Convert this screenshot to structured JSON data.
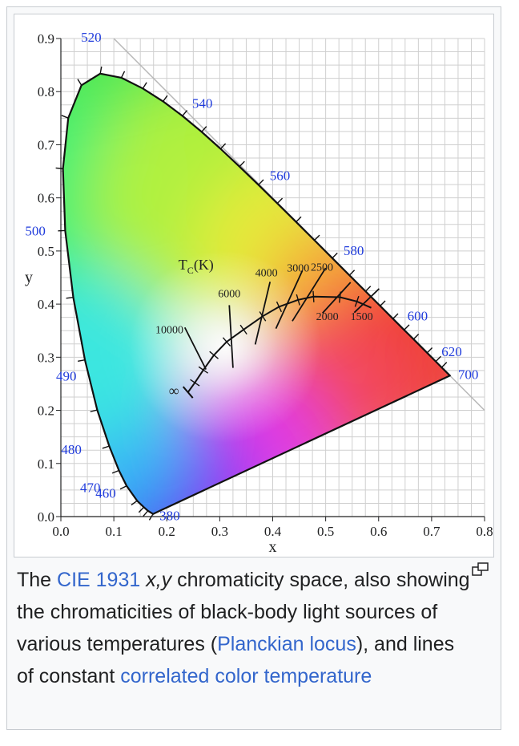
{
  "chart_data": {
    "type": "chromaticity-diagram",
    "title": "CIE 1931 x,y chromaticity space",
    "xlabel": "x",
    "ylabel": "y",
    "xlim": [
      0.0,
      0.8
    ],
    "ylim": [
      0.0,
      0.9
    ],
    "x_ticks": [
      "0.0",
      "0.1",
      "0.2",
      "0.3",
      "0.4",
      "0.5",
      "0.6",
      "0.7",
      "0.8"
    ],
    "y_ticks": [
      "0.0",
      "0.1",
      "0.2",
      "0.3",
      "0.4",
      "0.5",
      "0.6",
      "0.7",
      "0.8",
      "0.9"
    ],
    "spectral_locus": [
      {
        "nm": 380,
        "x": 0.1741,
        "y": 0.005
      },
      {
        "nm": 440,
        "x": 0.1644,
        "y": 0.0109
      },
      {
        "nm": 450,
        "x": 0.1566,
        "y": 0.0177
      },
      {
        "nm": 460,
        "x": 0.144,
        "y": 0.0297
      },
      {
        "nm": 470,
        "x": 0.1241,
        "y": 0.0578
      },
      {
        "nm": 475,
        "x": 0.1096,
        "y": 0.0868
      },
      {
        "nm": 480,
        "x": 0.0913,
        "y": 0.1327
      },
      {
        "nm": 485,
        "x": 0.0687,
        "y": 0.2007
      },
      {
        "nm": 490,
        "x": 0.0454,
        "y": 0.295
      },
      {
        "nm": 495,
        "x": 0.0235,
        "y": 0.4127
      },
      {
        "nm": 500,
        "x": 0.0082,
        "y": 0.5384
      },
      {
        "nm": 505,
        "x": 0.0039,
        "y": 0.6548
      },
      {
        "nm": 510,
        "x": 0.0139,
        "y": 0.7502
      },
      {
        "nm": 515,
        "x": 0.0389,
        "y": 0.812
      },
      {
        "nm": 520,
        "x": 0.0743,
        "y": 0.8338
      },
      {
        "nm": 525,
        "x": 0.1142,
        "y": 0.8262
      },
      {
        "nm": 530,
        "x": 0.1547,
        "y": 0.8059
      },
      {
        "nm": 535,
        "x": 0.1929,
        "y": 0.7816
      },
      {
        "nm": 540,
        "x": 0.2296,
        "y": 0.7543
      },
      {
        "nm": 545,
        "x": 0.2658,
        "y": 0.7243
      },
      {
        "nm": 550,
        "x": 0.3016,
        "y": 0.6923
      },
      {
        "nm": 555,
        "x": 0.3373,
        "y": 0.6589
      },
      {
        "nm": 560,
        "x": 0.3731,
        "y": 0.6245
      },
      {
        "nm": 565,
        "x": 0.4087,
        "y": 0.5896
      },
      {
        "nm": 570,
        "x": 0.4441,
        "y": 0.5547
      },
      {
        "nm": 575,
        "x": 0.4788,
        "y": 0.5202
      },
      {
        "nm": 580,
        "x": 0.5125,
        "y": 0.4866
      },
      {
        "nm": 585,
        "x": 0.5448,
        "y": 0.4544
      },
      {
        "nm": 590,
        "x": 0.5752,
        "y": 0.4242
      },
      {
        "nm": 595,
        "x": 0.6029,
        "y": 0.3965
      },
      {
        "nm": 600,
        "x": 0.627,
        "y": 0.3725
      },
      {
        "nm": 605,
        "x": 0.6482,
        "y": 0.3514
      },
      {
        "nm": 610,
        "x": 0.6658,
        "y": 0.334
      },
      {
        "nm": 620,
        "x": 0.6915,
        "y": 0.3083
      },
      {
        "nm": 630,
        "x": 0.7079,
        "y": 0.292
      },
      {
        "nm": 640,
        "x": 0.719,
        "y": 0.2809
      },
      {
        "nm": 700,
        "x": 0.7347,
        "y": 0.2653
      }
    ],
    "wavelength_labels": [
      {
        "label": "380",
        "nm": 380
      },
      {
        "label": "460",
        "nm": 460
      },
      {
        "label": "470",
        "nm": 470
      },
      {
        "label": "480",
        "nm": 480
      },
      {
        "label": "490",
        "nm": 490
      },
      {
        "label": "500",
        "nm": 500
      },
      {
        "label": "520",
        "nm": 520
      },
      {
        "label": "540",
        "nm": 540
      },
      {
        "label": "560",
        "nm": 560
      },
      {
        "label": "580",
        "nm": 580
      },
      {
        "label": "600",
        "nm": 600
      },
      {
        "label": "620",
        "nm": 620
      },
      {
        "label": "700",
        "nm": 700
      }
    ],
    "planckian_locus": [
      {
        "x": 0.24,
        "y": 0.234
      },
      {
        "x": 0.253,
        "y": 0.252
      },
      {
        "x": 0.269,
        "y": 0.276
      },
      {
        "x": 0.289,
        "y": 0.304
      },
      {
        "x": 0.313,
        "y": 0.329
      },
      {
        "x": 0.345,
        "y": 0.352
      },
      {
        "x": 0.381,
        "y": 0.377
      },
      {
        "x": 0.412,
        "y": 0.395
      },
      {
        "x": 0.448,
        "y": 0.408
      },
      {
        "x": 0.477,
        "y": 0.414
      },
      {
        "x": 0.527,
        "y": 0.413
      },
      {
        "x": 0.559,
        "y": 0.405
      },
      {
        "x": 0.586,
        "y": 0.393
      }
    ],
    "locus_end": {
      "label": "∞",
      "x": 0.24,
      "y": 0.234
    },
    "locus_title": "TC(K)",
    "cct_lines": [
      {
        "label": "10000",
        "x1": 0.234,
        "y1": 0.356,
        "x2": 0.274,
        "y2": 0.277
      },
      {
        "label": "6000",
        "x1": 0.318,
        "y1": 0.398,
        "x2": 0.325,
        "y2": 0.28
      },
      {
        "label": "4000",
        "x1": 0.395,
        "y1": 0.442,
        "x2": 0.367,
        "y2": 0.324
      },
      {
        "label": "3000",
        "x1": 0.456,
        "y1": 0.463,
        "x2": 0.406,
        "y2": 0.354
      },
      {
        "label": "2500",
        "x1": 0.5,
        "y1": 0.468,
        "x2": 0.437,
        "y2": 0.368
      },
      {
        "label": "2000",
        "x1": 0.547,
        "y1": 0.441,
        "x2": 0.494,
        "y2": 0.383
      },
      {
        "label": "1500",
        "x1": 0.601,
        "y1": 0.429,
        "x2": 0.554,
        "y2": 0.384
      }
    ],
    "cct_label_positions": [
      {
        "label": "10000",
        "x": 0.205,
        "y": 0.345
      },
      {
        "label": "6000",
        "x": 0.318,
        "y": 0.413
      },
      {
        "label": "4000",
        "x": 0.388,
        "y": 0.452
      },
      {
        "label": "3000",
        "x": 0.448,
        "y": 0.461
      },
      {
        "label": "2500",
        "x": 0.493,
        "y": 0.463
      },
      {
        "label": "2000",
        "x": 0.503,
        "y": 0.37
      },
      {
        "label": "1500",
        "x": 0.568,
        "y": 0.37
      }
    ]
  },
  "caption": {
    "p1": "The ",
    "link1": "CIE 1931",
    "p2": " ",
    "xy": "x,y",
    "p3": " chromaticity space, also showing the chromaticities of black-body light sources of various temperatures (",
    "link2": "Planckian locus",
    "p4": "), and lines of constant ",
    "link3": "correlated color temperature"
  },
  "magnify_icon": "magnify-clip-icon",
  "colors": {
    "link": "#3366cc",
    "label_blue": "#1f3bdc",
    "grid": "#c8c8c8",
    "text": "#202122"
  }
}
